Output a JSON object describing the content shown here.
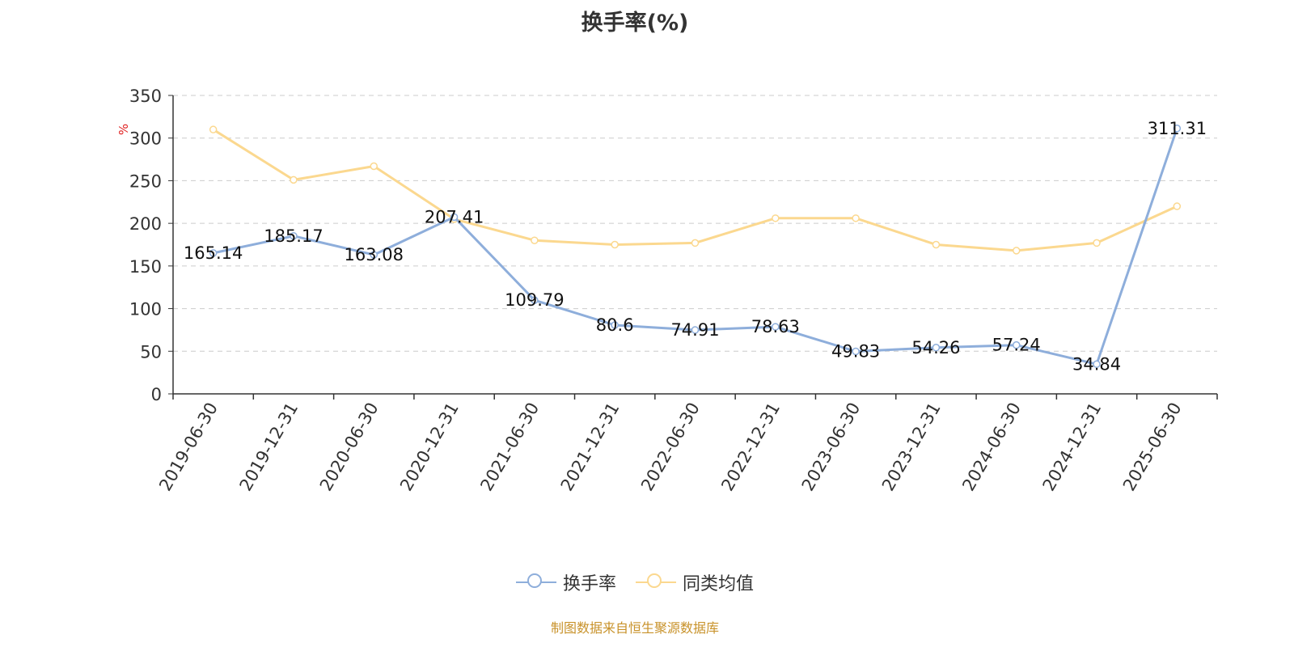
{
  "chart_data": {
    "type": "line",
    "title": "换手率(%)",
    "ylabel": "%",
    "ylim": [
      0,
      350
    ],
    "yticks": [
      0,
      50,
      100,
      150,
      200,
      250,
      300,
      350
    ],
    "grid": true,
    "legend_position": "bottom-center",
    "categories": [
      "2019-06-30",
      "2019-12-31",
      "2020-06-30",
      "2020-12-31",
      "2021-06-30",
      "2021-12-31",
      "2022-06-30",
      "2022-12-31",
      "2023-06-30",
      "2023-12-31",
      "2024-06-30",
      "2024-12-31",
      "2025-06-30"
    ],
    "series": [
      {
        "name": "换手率",
        "color": "#8eaedb",
        "values": [
          165.14,
          185.17,
          163.08,
          207.41,
          109.79,
          80.6,
          74.91,
          78.63,
          49.83,
          54.26,
          57.24,
          34.84,
          311.31
        ],
        "labels": [
          "165.14",
          "185.17",
          "163.08",
          "207.41",
          "109.79",
          "80.6",
          "74.91",
          "78.63",
          "49.83",
          "54.26",
          "57.24",
          "34.84",
          "311.31"
        ]
      },
      {
        "name": "同类均值",
        "color": "#fbd88f",
        "values": [
          310,
          251,
          267,
          205,
          180,
          175,
          177,
          206,
          206,
          175,
          168,
          177,
          220
        ]
      }
    ],
    "source_note": "制图数据来自恒生聚源数据库"
  }
}
